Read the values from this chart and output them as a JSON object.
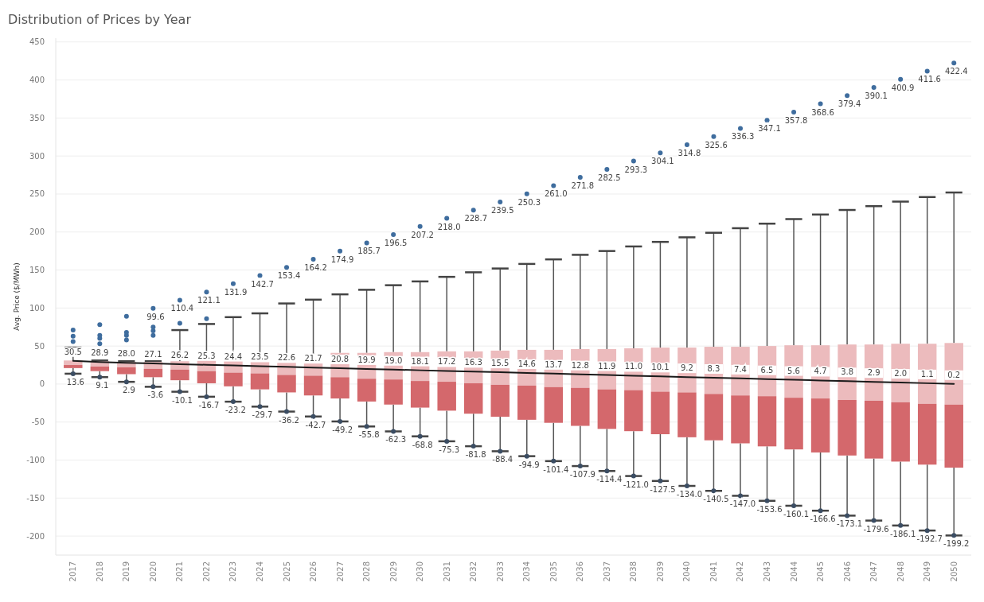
{
  "chart_data": {
    "type": "box",
    "title": "Distribution of Prices by Year",
    "ylabel": "Avg. Price ($/MWh)",
    "categories": [
      "2017",
      "2018",
      "2019",
      "2020",
      "2021",
      "2022",
      "2023",
      "2024",
      "2025",
      "2026",
      "2027",
      "2028",
      "2029",
      "2030",
      "2031",
      "2032",
      "2033",
      "2034",
      "2035",
      "2036",
      "2037",
      "2038",
      "2039",
      "2040",
      "2041",
      "2042",
      "2043",
      "2044",
      "2045",
      "2046",
      "2047",
      "2048",
      "2049",
      "2050"
    ],
    "ylim": [
      -225,
      455
    ],
    "yticks": [
      -200,
      -150,
      -100,
      -50,
      0,
      50,
      100,
      150,
      200,
      250,
      300,
      350,
      400,
      450
    ],
    "grid": "y",
    "marker": "circle",
    "series": [
      {
        "color": "#d4686c",
        "boxes": [
          {
            "low": 13.6,
            "q1": 21,
            "median": 25,
            "q3": 31,
            "high": 48,
            "outliers": [
              56,
              63
            ]
          },
          {
            "low": 9.1,
            "q1": 17,
            "median": 23,
            "q3": 30,
            "high": 31,
            "outliers": [
              53,
              60,
              64
            ]
          },
          {
            "low": 2.9,
            "q1": 13,
            "median": 22,
            "q3": 29,
            "high": 30,
            "outliers": [
              58,
              64,
              68
            ]
          },
          {
            "low": -3.6,
            "q1": 9,
            "median": 20,
            "q3": 29,
            "high": 30,
            "outliers": [
              64,
              70,
              75
            ]
          },
          {
            "low": -10.1,
            "q1": 5,
            "median": 19,
            "q3": 30,
            "high": 71,
            "outliers": [
              80
            ]
          },
          {
            "low": -16.7,
            "q1": 1,
            "median": 17,
            "q3": 31,
            "high": 79,
            "outliers": [
              86
            ]
          },
          {
            "low": -23.2,
            "q1": -3,
            "median": 15,
            "q3": 32,
            "high": 88
          },
          {
            "low": -29.7,
            "q1": -7,
            "median": 14,
            "q3": 34,
            "high": 93
          },
          {
            "low": -36.2,
            "q1": -11,
            "median": 12,
            "q3": 37,
            "high": 106
          },
          {
            "low": -42.7,
            "q1": -15,
            "median": 11,
            "q3": 39,
            "high": 111
          },
          {
            "low": -49.2,
            "q1": -19,
            "median": 9,
            "q3": 41,
            "high": 118
          },
          {
            "low": -55.8,
            "q1": -23,
            "median": 7,
            "q3": 41,
            "high": 124
          },
          {
            "low": -62.3,
            "q1": -27,
            "median": 6,
            "q3": 42,
            "high": 130
          },
          {
            "low": -68.8,
            "q1": -31,
            "median": 4,
            "q3": 42,
            "high": 135
          },
          {
            "low": -75.3,
            "q1": -35,
            "median": 3,
            "q3": 43,
            "high": 141
          },
          {
            "low": -81.8,
            "q1": -39,
            "median": 1,
            "q3": 43,
            "high": 147
          },
          {
            "low": -88.4,
            "q1": -43,
            "median": -1,
            "q3": 44,
            "high": 152
          },
          {
            "low": -94.9,
            "q1": -47,
            "median": -2,
            "q3": 45,
            "high": 158
          },
          {
            "low": -101.4,
            "q1": -51,
            "median": -4,
            "q3": 45,
            "high": 164
          },
          {
            "low": -107.9,
            "q1": -55,
            "median": -5,
            "q3": 46,
            "high": 170
          },
          {
            "low": -114.4,
            "q1": -59,
            "median": -7,
            "q3": 46,
            "high": 175
          },
          {
            "low": -121.0,
            "q1": -62,
            "median": -8,
            "q3": 47,
            "high": 181
          },
          {
            "low": -127.5,
            "q1": -66,
            "median": -10,
            "q3": 48,
            "high": 187
          },
          {
            "low": -134.0,
            "q1": -70,
            "median": -11,
            "q3": 48,
            "high": 193
          },
          {
            "low": -140.5,
            "q1": -74,
            "median": -13,
            "q3": 49,
            "high": 199
          },
          {
            "low": -147.0,
            "q1": -78,
            "median": -15,
            "q3": 49,
            "high": 205
          },
          {
            "low": -153.6,
            "q1": -82,
            "median": -16,
            "q3": 50,
            "high": 211
          },
          {
            "low": -160.1,
            "q1": -86,
            "median": -18,
            "q3": 51,
            "high": 217
          },
          {
            "low": -166.6,
            "q1": -90,
            "median": -19,
            "q3": 51,
            "high": 223
          },
          {
            "low": -173.1,
            "q1": -94,
            "median": -21,
            "q3": 52,
            "high": 229
          },
          {
            "low": -179.6,
            "q1": -98,
            "median": -22,
            "q3": 52,
            "high": 234
          },
          {
            "low": -186.1,
            "q1": -102,
            "median": -24,
            "q3": 53,
            "high": 240
          },
          {
            "low": -192.7,
            "q1": -106,
            "median": -26,
            "q3": 53,
            "high": 246
          },
          {
            "low": -199.2,
            "q1": -110,
            "median": -27,
            "q3": 54,
            "high": 252
          }
        ]
      },
      {
        "type": "scatter",
        "color": "#3f6d9e",
        "values": [
          71,
          78,
          89,
          99.6,
          110.4,
          121.1,
          131.9,
          142.7,
          153.4,
          164.2,
          174.9,
          185.7,
          196.5,
          207.2,
          218.0,
          228.7,
          239.5,
          250.3,
          261.0,
          271.8,
          282.5,
          293.3,
          304.1,
          314.8,
          325.6,
          336.3,
          347.1,
          357.8,
          368.6,
          379.4,
          390.1,
          400.9,
          411.6,
          422.4
        ],
        "value_labels": [
          null,
          null,
          null,
          "99.6",
          "110.4",
          "121.1",
          "131.9",
          "142.7",
          "153.4",
          "164.2",
          "174.9",
          "185.7",
          "196.5",
          "207.2",
          "218.0",
          "228.7",
          "239.5",
          "250.3",
          "261.0",
          "271.8",
          "282.5",
          "293.3",
          "304.1",
          "314.8",
          "325.6",
          "336.3",
          "347.1",
          "357.8",
          "368.6",
          "379.4",
          "390.1",
          "400.9",
          "411.6",
          "422.4"
        ]
      },
      {
        "type": "scatter",
        "color": "#3b4d63",
        "values": [
          13.6,
          9.1,
          2.9,
          -3.6,
          -10.1,
          -16.7,
          -23.2,
          -29.7,
          -36.2,
          -42.7,
          -49.2,
          -55.8,
          -62.3,
          -68.8,
          -75.3,
          -81.8,
          -88.4,
          -94.9,
          -101.4,
          -107.9,
          -114.4,
          -121.0,
          -127.5,
          -134.0,
          -140.5,
          -147.0,
          -153.6,
          -160.1,
          -166.6,
          -173.1,
          -179.6,
          -186.1,
          -192.7,
          -199.2
        ],
        "value_labels": [
          "13.6",
          "9.1",
          "2.9",
          "-3.6",
          "-10.1",
          "-16.7",
          "-23.2",
          "-29.7",
          "-36.2",
          "-42.7",
          "-49.2",
          "-55.8",
          "-62.3",
          "-68.8",
          "-75.3",
          "-81.8",
          "-88.4",
          "-94.9",
          "-101.4",
          "-107.9",
          "-114.4",
          "-121.0",
          "-127.5",
          "-134.0",
          "-140.5",
          "-147.0",
          "-153.6",
          "-160.1",
          "-166.6",
          "-173.1",
          "-179.6",
          "-186.1",
          "-192.7",
          "-199.2"
        ]
      },
      {
        "type": "line",
        "marker": "none",
        "color": "#1a1a1a",
        "values": [
          30.5,
          28.9,
          28.0,
          27.1,
          26.2,
          25.3,
          24.4,
          23.5,
          22.6,
          21.7,
          20.8,
          19.9,
          19.0,
          18.1,
          17.2,
          16.3,
          15.5,
          14.6,
          13.7,
          12.8,
          11.9,
          11.0,
          10.1,
          9.2,
          8.3,
          7.4,
          6.5,
          5.6,
          4.7,
          3.8,
          2.9,
          2.0,
          1.1,
          0.2
        ],
        "value_labels": [
          "30.5",
          "28.9",
          "28.0",
          "27.1",
          "26.2",
          "25.3",
          "24.4",
          "23.5",
          "22.6",
          "21.7",
          "20.8",
          "19.9",
          "19.0",
          "18.1",
          "17.2",
          "16.3",
          "15.5",
          "14.6",
          "13.7",
          "12.8",
          "11.9",
          "11.0",
          "10.1",
          "9.2",
          "8.3",
          "7.4",
          "6.5",
          "5.6",
          "4.7",
          "3.8",
          "2.9",
          "2.0",
          "1.1",
          "0.2"
        ]
      }
    ]
  }
}
